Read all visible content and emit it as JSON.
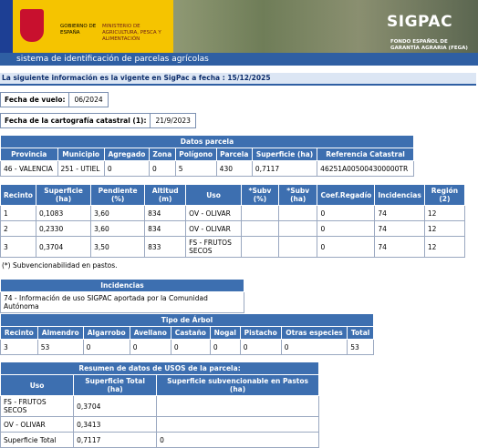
{
  "header": {
    "government": "GOBIERNO DE ESPAÑA",
    "ministry": "MINISTERIO DE AGRICULTURA, PESCA Y ALIMENTACIÓN",
    "logo": "SIGPAC",
    "agency": "FONDO ESPAÑOL DE GARANTÍA AGRARIA (FEGA)",
    "subtitle": "sistema de identificación de parcelas agrícolas"
  },
  "notice": "La siguiente información es la vigente en SigPac a fecha : 15/12/2025",
  "fecha_vuelo": {
    "label": "Fecha de vuelo:",
    "value": "06/2024"
  },
  "fecha_cartografia": {
    "label": "Fecha de la cartografía catastral (1):",
    "value": "21/9/2023"
  },
  "datos_parcela": {
    "title": "Datos parcela",
    "columns": [
      "Provincia",
      "Municipio",
      "Agregado",
      "Zona",
      "Polígono",
      "Parcela",
      "Superficie (ha)",
      "Referencia Catastral"
    ],
    "rows": [
      [
        "46 - VALENCIA",
        "251 - UTIEL",
        "0",
        "0",
        "5",
        "430",
        "0,7117",
        "46251A005004300000TR"
      ]
    ]
  },
  "recintos": {
    "columns": [
      "Recinto",
      "Superficie (ha)",
      "Pendiente (%)",
      "Altitud (m)",
      "Uso",
      "*Subv (%)",
      "*Subv (ha)",
      "Coef.Regadío",
      "Incidencias",
      "Región (2)"
    ],
    "rows": [
      [
        "1",
        "0,1083",
        "3,60",
        "834",
        "OV - OLIVAR",
        null,
        null,
        "0",
        "74",
        "12"
      ],
      [
        "2",
        "0,2330",
        "3,60",
        "834",
        "OV - OLIVAR",
        null,
        null,
        "0",
        "74",
        "12"
      ],
      [
        "3",
        "0,3704",
        "3,50",
        "833",
        "FS - FRUTOS SECOS",
        null,
        null,
        "0",
        "74",
        "12"
      ]
    ],
    "note": "(*) Subvencionabilidad en pastos."
  },
  "incidencias": {
    "title": "Incidencias",
    "rows": [
      [
        "74 - Información de uso SIGPAC aportada por la Comunidad Autónoma"
      ]
    ]
  },
  "tipo_arbol": {
    "title": "Tipo de Árbol",
    "columns": [
      "Recinto",
      "Almendro",
      "Algarrobo",
      "Avellano",
      "Castaño",
      "Nogal",
      "Pistacho",
      "Otras especies",
      "Total"
    ],
    "rows": [
      [
        "3",
        "53",
        "0",
        "0",
        "0",
        "0",
        "0",
        "0",
        "53"
      ]
    ]
  },
  "resumen": {
    "title": "Resumen de datos de USOS de la parcela:",
    "columns": [
      "Uso",
      "Superficie Total (ha)",
      "Superficie subvencionable en Pastos (ha)"
    ],
    "rows": [
      [
        "FS - FRUTOS SECOS",
        "0,3704",
        null
      ],
      [
        "OV - OLIVAR",
        "0,3413",
        null
      ],
      [
        "Superficie Total",
        "0,7117",
        "0"
      ]
    ]
  }
}
